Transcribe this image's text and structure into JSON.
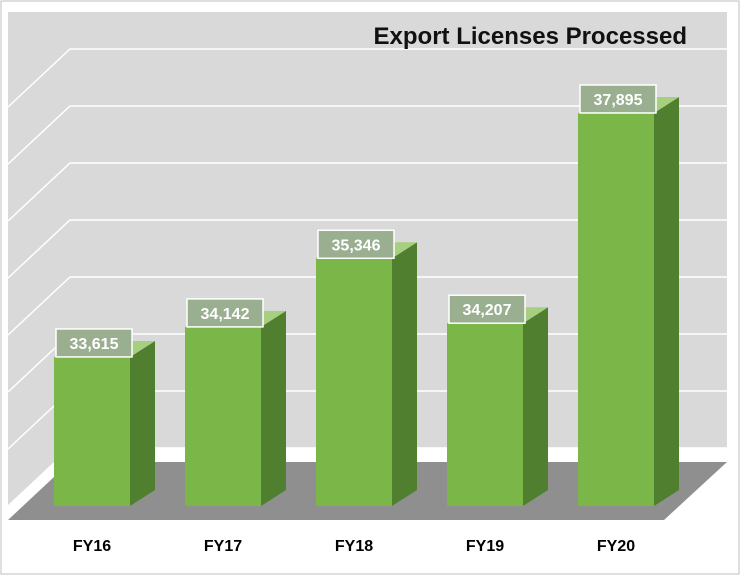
{
  "chart_data": {
    "type": "bar",
    "title": "Export Licenses Processed",
    "categories": [
      "FY16",
      "FY17",
      "FY18",
      "FY19",
      "FY20"
    ],
    "values": [
      33615,
      34142,
      35346,
      34207,
      37895
    ],
    "data_labels": [
      "33,615",
      "34,142",
      "35,346",
      "34,207",
      "37,895"
    ],
    "xlabel": "",
    "ylabel": "",
    "ylim": [
      31000,
      38500
    ],
    "grid": true,
    "legend": "none",
    "style": "3d-column"
  },
  "colors": {
    "plot_background": "#d9d9d9",
    "frame_border": "#bfbfbf",
    "gridline": "#ffffff",
    "bar_front": "#7ab648",
    "bar_side": "#4f7f2f",
    "bar_top": "#a6cf7f",
    "floor": "#8f8f8f",
    "label_box": "#9aae90",
    "label_text": "#ffffff"
  }
}
